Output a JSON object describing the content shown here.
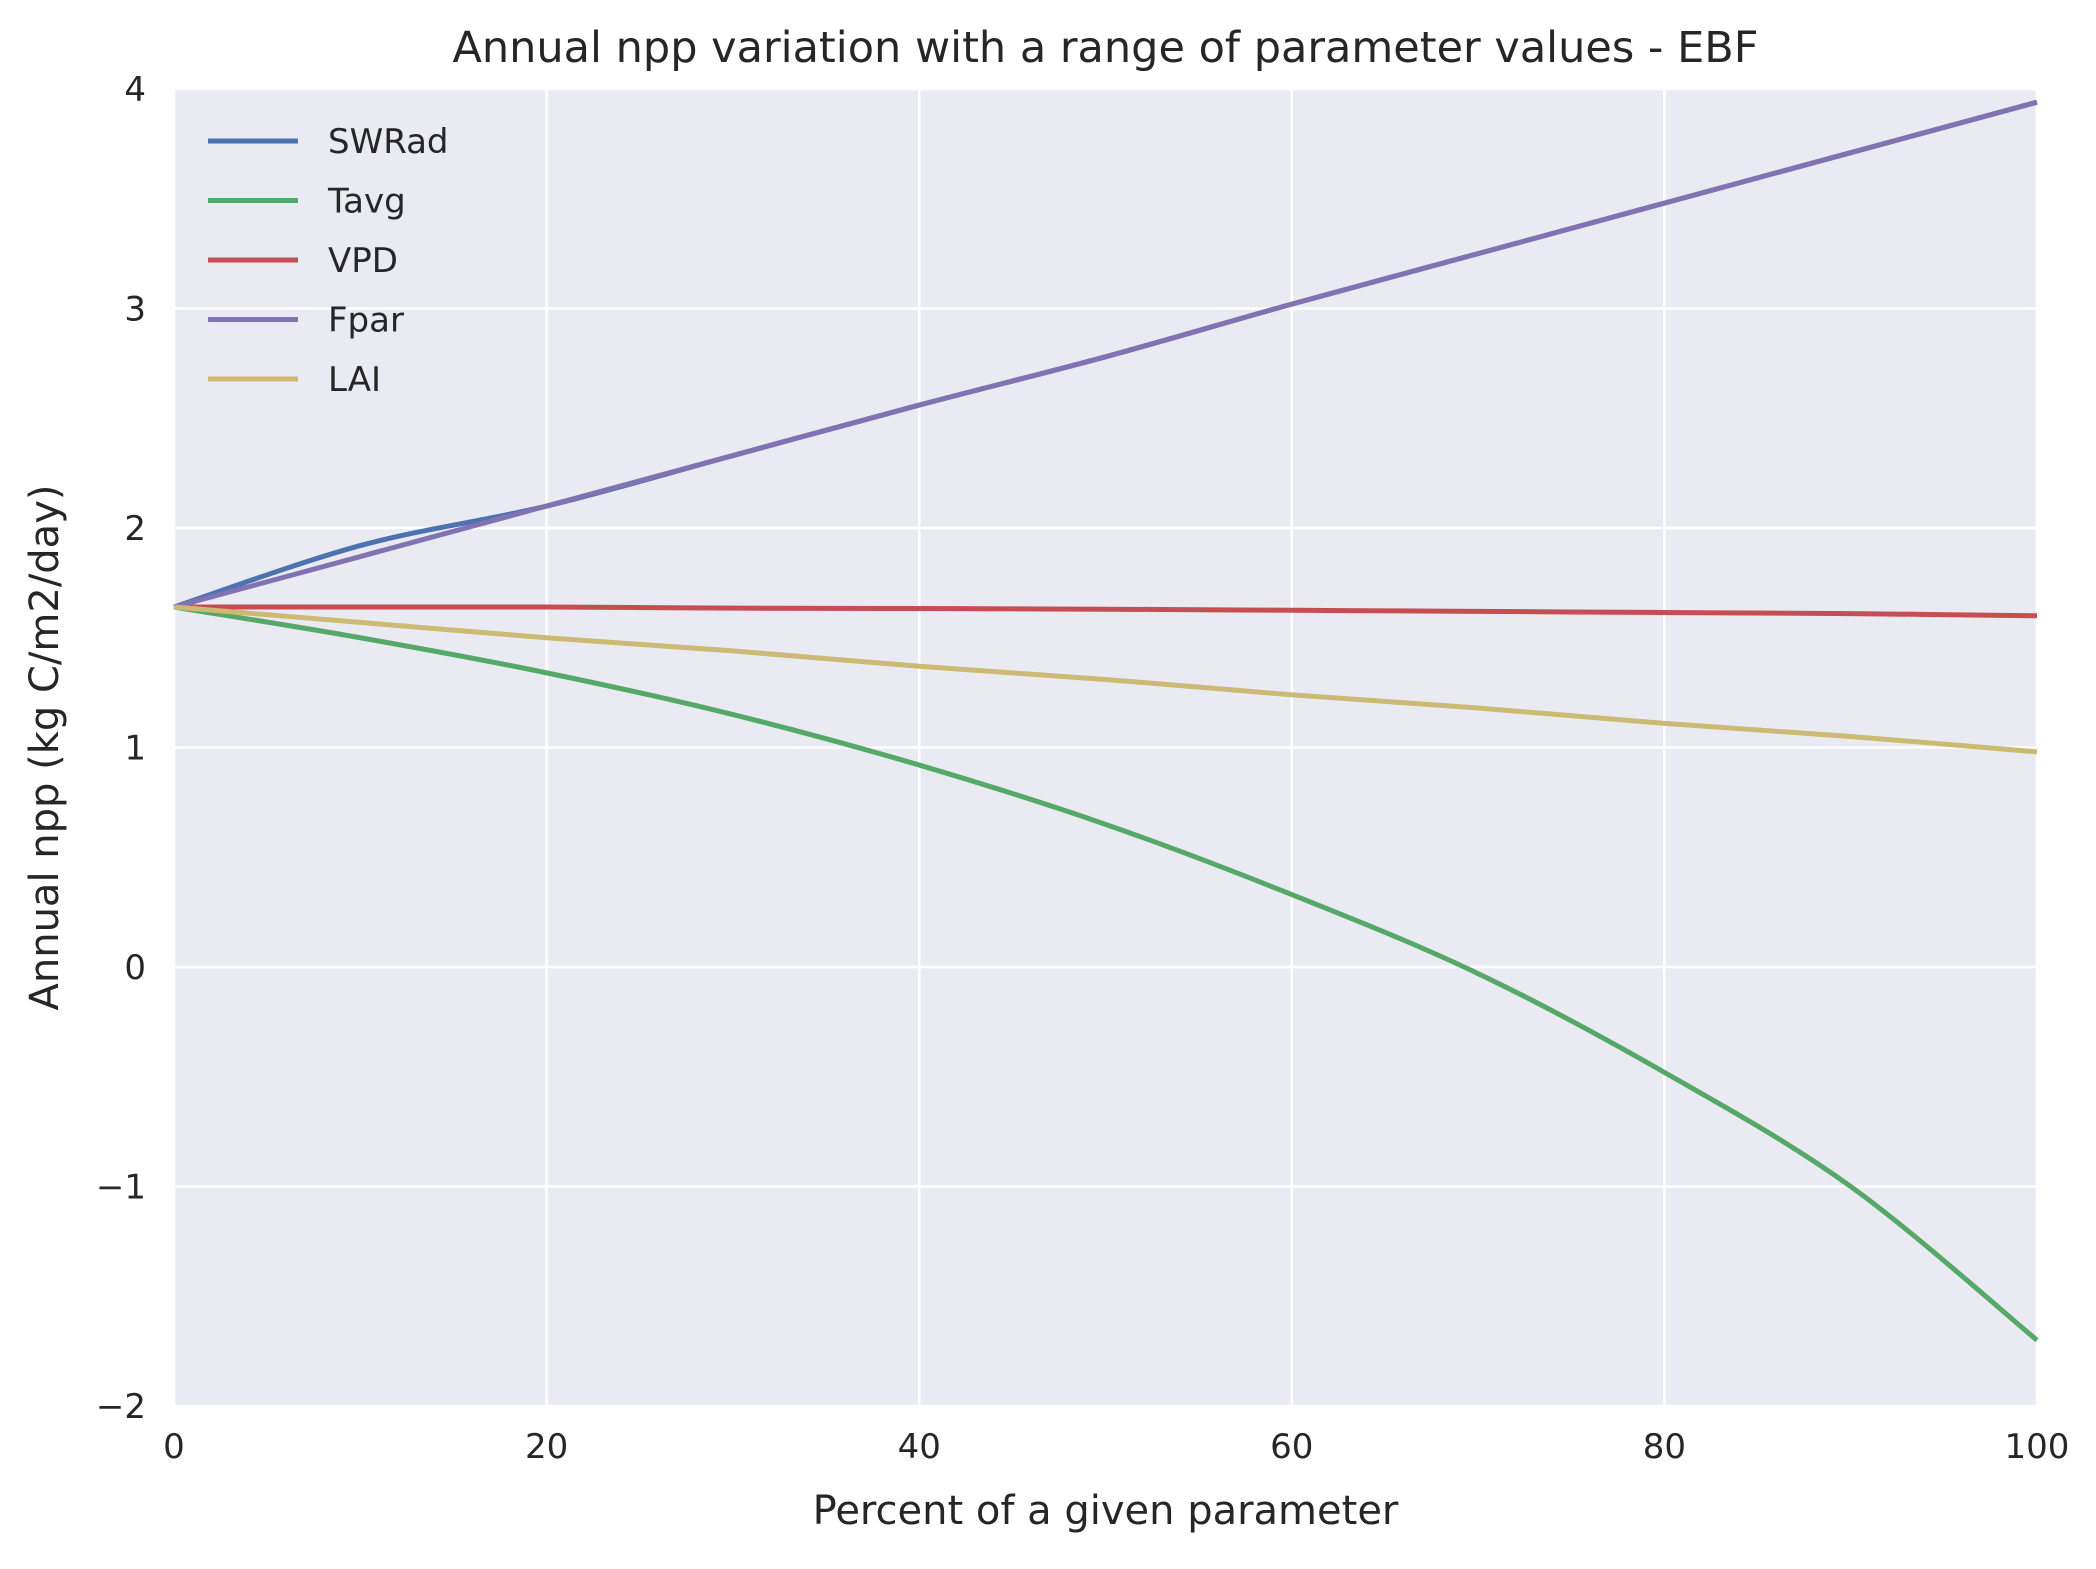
{
  "chart_data": {
    "type": "line",
    "title": "Annual npp variation with a range of parameter values - EBF",
    "xlabel": "Percent of a given parameter",
    "ylabel": "Annual npp (kg C/m2/day)",
    "xlim": [
      0,
      100
    ],
    "ylim": [
      -2,
      4
    ],
    "x_ticks": [
      0,
      20,
      40,
      60,
      80,
      100
    ],
    "y_ticks": [
      -2,
      -1,
      0,
      1,
      2,
      3,
      4
    ],
    "x_tick_labels": [
      "0",
      "20",
      "40",
      "60",
      "80",
      "100"
    ],
    "y_tick_labels": [
      "−2",
      "−1",
      "0",
      "1",
      "2",
      "3",
      "4"
    ],
    "grid": true,
    "legend_position": "top-left",
    "x": [
      0,
      10,
      20,
      30,
      40,
      50,
      60,
      70,
      80,
      90,
      100
    ],
    "series": [
      {
        "name": "SWRad",
        "color": "#4C72B0",
        "values": [
          1.64,
          1.92,
          2.1,
          2.33,
          2.56,
          2.78,
          3.02,
          3.25,
          3.48,
          3.71,
          3.94
        ]
      },
      {
        "name": "Tavg",
        "color": "#55A868",
        "values": [
          1.64,
          1.5,
          1.34,
          1.15,
          0.92,
          0.65,
          0.33,
          -0.03,
          -0.48,
          -1.0,
          -1.7
        ]
      },
      {
        "name": "VPD",
        "color": "#C44E52",
        "values": [
          1.64,
          1.64,
          1.64,
          1.635,
          1.633,
          1.63,
          1.625,
          1.62,
          1.615,
          1.61,
          1.6
        ]
      },
      {
        "name": "Fpar",
        "color": "#8172B2",
        "values": [
          1.64,
          1.87,
          2.1,
          2.33,
          2.56,
          2.78,
          3.02,
          3.25,
          3.48,
          3.71,
          3.94
        ]
      },
      {
        "name": "LAI",
        "color": "#CCB974",
        "values": [
          1.64,
          1.57,
          1.5,
          1.44,
          1.37,
          1.31,
          1.24,
          1.18,
          1.11,
          1.05,
          0.98
        ]
      }
    ]
  }
}
